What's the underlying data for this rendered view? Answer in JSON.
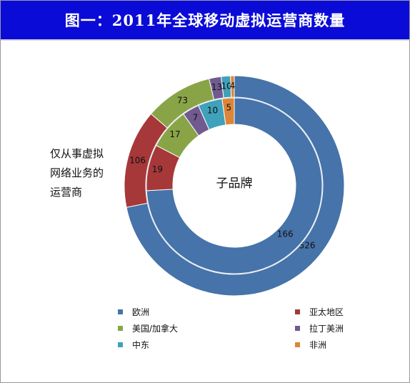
{
  "title": "图一：2011年全球移动虚拟运营商数量",
  "side_label": [
    "仅从事虚拟",
    "网络业务的",
    "运营商"
  ],
  "center_label": "子品牌",
  "colors": {
    "欧洲": "#4673a9",
    "亚太地区": "#a6383a",
    "美国/加拿大": "#89a447",
    "拉丁美洲": "#705a8f",
    "中东": "#3fa1ba",
    "非洲": "#dd8538"
  },
  "chart_data": {
    "type": "donut",
    "title": "图一：2011年全球移动虚拟运营商数量",
    "categories": [
      "欧洲",
      "亚太地区",
      "美国/加拿大",
      "拉丁美洲",
      "中东",
      "非洲"
    ],
    "series": [
      {
        "name": "仅从事虚拟网络业务的运营商",
        "ring": "outer",
        "values": [
          526,
          106,
          73,
          13,
          10,
          4
        ]
      },
      {
        "name": "子品牌",
        "ring": "inner",
        "values": [
          166,
          19,
          17,
          7,
          10,
          5
        ]
      }
    ],
    "legend": [
      "欧洲",
      "亚太地区",
      "美国/加拿大",
      "拉丁美洲",
      "中东",
      "非洲"
    ],
    "legend_position": "bottom"
  }
}
